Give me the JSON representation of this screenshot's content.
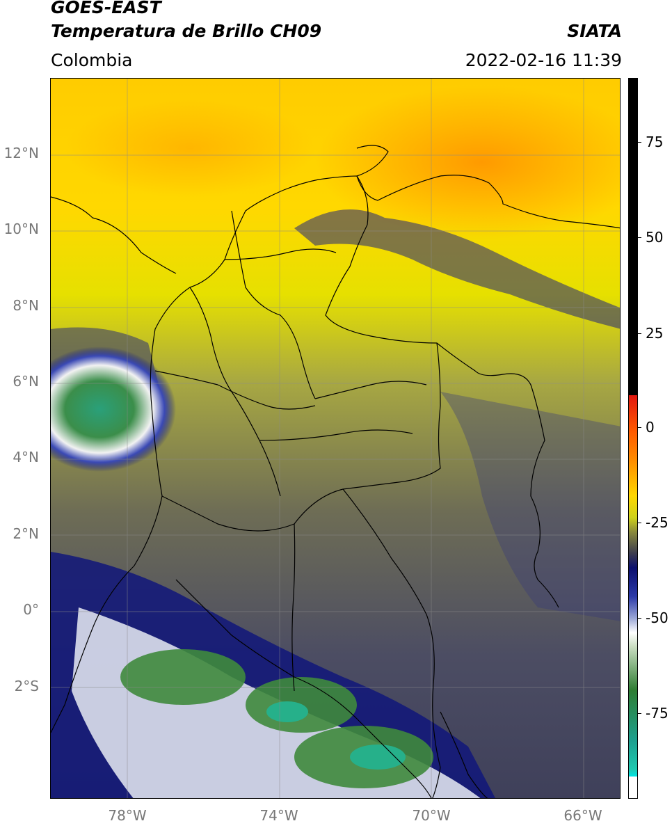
{
  "header": {
    "satellite": "GOES-EAST",
    "product": "Temperatura de Brillo CH09",
    "region": "Colombia",
    "source": "SIATA",
    "datetime": "2022-02-16 11:39"
  },
  "map": {
    "lat_labels": [
      "12°N",
      "10°N",
      "8°N",
      "6°N",
      "4°N",
      "2°N",
      "0°",
      "2°S"
    ],
    "lon_labels": [
      "78°W",
      "74°W",
      "70°W",
      "66°W"
    ]
  },
  "colorbar": {
    "ticks": [
      "75",
      "50",
      "25",
      "0",
      "-25",
      "-50",
      "-75"
    ],
    "colors": [
      "#000000",
      "#e2170f",
      "#ff8c00",
      "#ffd700",
      "#cfd21a",
      "#3c3c4f",
      "#0b0f6e",
      "#ffffff",
      "#2e7d32",
      "#1ec9b0"
    ]
  }
}
